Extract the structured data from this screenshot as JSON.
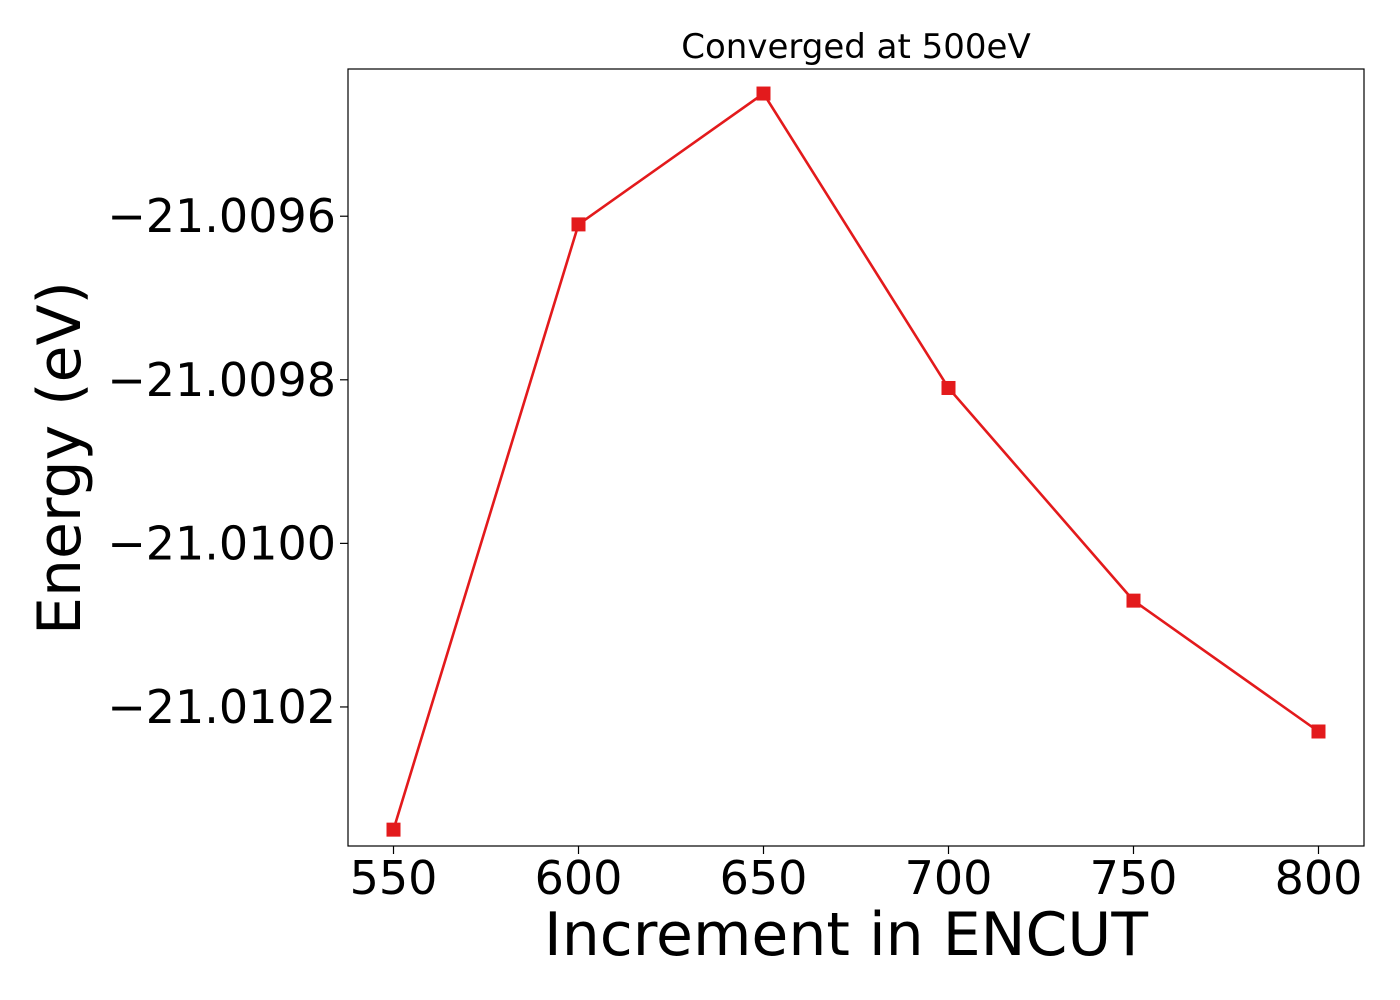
{
  "chart_data": {
    "type": "line",
    "title": "Converged at 500eV",
    "xlabel": "Increment in ENCUT",
    "ylabel": "Energy (eV)",
    "x": [
      550,
      600,
      650,
      700,
      750,
      800
    ],
    "series": [
      {
        "values": [
          -21.01035,
          -21.00961,
          -21.00945,
          -21.00981,
          -21.01007,
          -21.01023
        ],
        "color": "#e31a1c",
        "marker": "square"
      }
    ],
    "xlim": [
      537.7,
      812.3
    ],
    "ylim": [
      -21.01037,
      -21.00942
    ],
    "xticks": [
      550,
      600,
      650,
      700,
      750,
      800
    ],
    "xtick_labels": [
      "550",
      "600",
      "650",
      "700",
      "750",
      "800"
    ],
    "yticks": [
      -21.0096,
      -21.0098,
      -21.01,
      -21.0102
    ],
    "ytick_labels": [
      "−21.0096",
      "−21.0098",
      "−21.0100",
      "−21.0102"
    ],
    "grid": false,
    "legend": "none"
  }
}
